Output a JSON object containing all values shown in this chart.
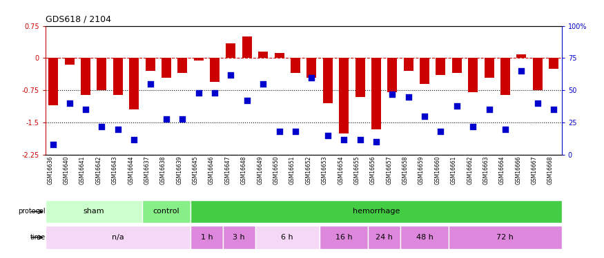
{
  "title": "GDS618 / 2104",
  "samples": [
    "GSM16636",
    "GSM16640",
    "GSM16641",
    "GSM16642",
    "GSM16643",
    "GSM16644",
    "GSM16637",
    "GSM16638",
    "GSM16639",
    "GSM16645",
    "GSM16646",
    "GSM16647",
    "GSM16648",
    "GSM16649",
    "GSM16650",
    "GSM16651",
    "GSM16652",
    "GSM16653",
    "GSM16654",
    "GSM16655",
    "GSM16656",
    "GSM16657",
    "GSM16658",
    "GSM16659",
    "GSM16660",
    "GSM16661",
    "GSM16662",
    "GSM16663",
    "GSM16664",
    "GSM16666",
    "GSM16667",
    "GSM16668"
  ],
  "log_ratio": [
    -1.1,
    -0.15,
    -0.85,
    -0.75,
    -0.85,
    -1.2,
    -0.3,
    -0.45,
    -0.35,
    -0.05,
    -0.55,
    0.35,
    0.5,
    0.15,
    0.12,
    -0.35,
    -0.45,
    -1.05,
    -1.75,
    -0.9,
    -1.65,
    -0.8,
    -0.3,
    -0.6,
    -0.4,
    -0.35,
    -0.8,
    -0.45,
    -0.85,
    0.08,
    -0.75,
    -0.25
  ],
  "percentile_rank": [
    8,
    40,
    35,
    22,
    20,
    12,
    55,
    28,
    28,
    48,
    48,
    62,
    42,
    55,
    18,
    18,
    60,
    15,
    12,
    12,
    10,
    47,
    45,
    30,
    18,
    38,
    22,
    35,
    20,
    65,
    40,
    35
  ],
  "bar_color": "#cc0000",
  "dot_color": "#0000cc",
  "ylim_left": [
    -2.25,
    0.75
  ],
  "ylim_right": [
    0,
    100
  ],
  "yticks_left": [
    0.75,
    0,
    -0.75,
    -1.5,
    -2.25
  ],
  "yticks_right": [
    100,
    75,
    50,
    25,
    0
  ],
  "ytick_labels_right": [
    "100%",
    "75",
    "50",
    "25",
    "0"
  ],
  "hline_y": [
    0,
    -0.75,
    -1.5
  ],
  "hline_styles": [
    "--",
    ":",
    ":"
  ],
  "hline_colors": [
    "#cc0000",
    "#000000",
    "#000000"
  ],
  "protocol_row": [
    {
      "label": "sham",
      "start": 0,
      "end": 5,
      "color": "#ccffcc"
    },
    {
      "label": "control",
      "start": 6,
      "end": 8,
      "color": "#88ee88"
    },
    {
      "label": "hemorrhage",
      "start": 9,
      "end": 31,
      "color": "#44cc44"
    }
  ],
  "time_row": [
    {
      "label": "n/a",
      "start": 0,
      "end": 8,
      "color": "#f5d8f5"
    },
    {
      "label": "1 h",
      "start": 9,
      "end": 10,
      "color": "#dd88dd"
    },
    {
      "label": "3 h",
      "start": 11,
      "end": 12,
      "color": "#dd88dd"
    },
    {
      "label": "6 h",
      "start": 13,
      "end": 16,
      "color": "#f5d8f5"
    },
    {
      "label": "16 h",
      "start": 17,
      "end": 19,
      "color": "#dd88dd"
    },
    {
      "label": "24 h",
      "start": 20,
      "end": 21,
      "color": "#dd88dd"
    },
    {
      "label": "48 h",
      "start": 22,
      "end": 24,
      "color": "#dd88dd"
    },
    {
      "label": "72 h",
      "start": 25,
      "end": 31,
      "color": "#dd88dd"
    }
  ],
  "bg_color": "#ffffff",
  "bar_width": 0.6,
  "dot_size": 28
}
